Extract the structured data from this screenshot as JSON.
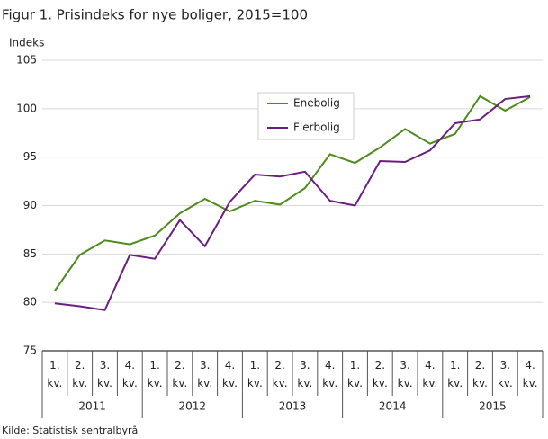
{
  "chart_data": {
    "type": "line",
    "title": "Figur 1. Prisindeks for nye boliger, 2015=100",
    "y_label": "Indeks",
    "source": "Kilde: Statistisk sentralbyrå",
    "categories": [
      "1. kv.",
      "2. kv.",
      "3. kv.",
      "4. kv.",
      "1. kv.",
      "2. kv.",
      "3. kv.",
      "4. kv.",
      "1. kv.",
      "2. kv.",
      "3. kv.",
      "4. kv.",
      "1. kv.",
      "2. kv.",
      "3. kv.",
      "4. kv.",
      "1. kv.",
      "2. kv.",
      "3. kv.",
      "4. kv."
    ],
    "years": [
      "2011",
      "2012",
      "2013",
      "2014",
      "2015"
    ],
    "series": [
      {
        "name": "Enebolig",
        "color": "#4e8b1c",
        "values": [
          81.2,
          84.9,
          86.4,
          86.0,
          86.9,
          89.2,
          90.7,
          89.4,
          90.5,
          90.1,
          91.8,
          95.3,
          94.4,
          96.0,
          97.9,
          96.4,
          97.4,
          101.3,
          99.8,
          101.2
        ]
      },
      {
        "name": "Flerbolig",
        "color": "#6a1f80",
        "values": [
          79.9,
          79.6,
          79.2,
          84.9,
          84.5,
          88.5,
          85.8,
          90.4,
          93.2,
          93.0,
          93.5,
          90.5,
          90.0,
          94.6,
          94.5,
          95.7,
          98.5,
          98.9,
          101.0,
          101.3
        ]
      }
    ],
    "ylim": [
      75,
      105
    ],
    "yticks": [
      75,
      80,
      85,
      90,
      95,
      100,
      105
    ],
    "grid": true
  }
}
